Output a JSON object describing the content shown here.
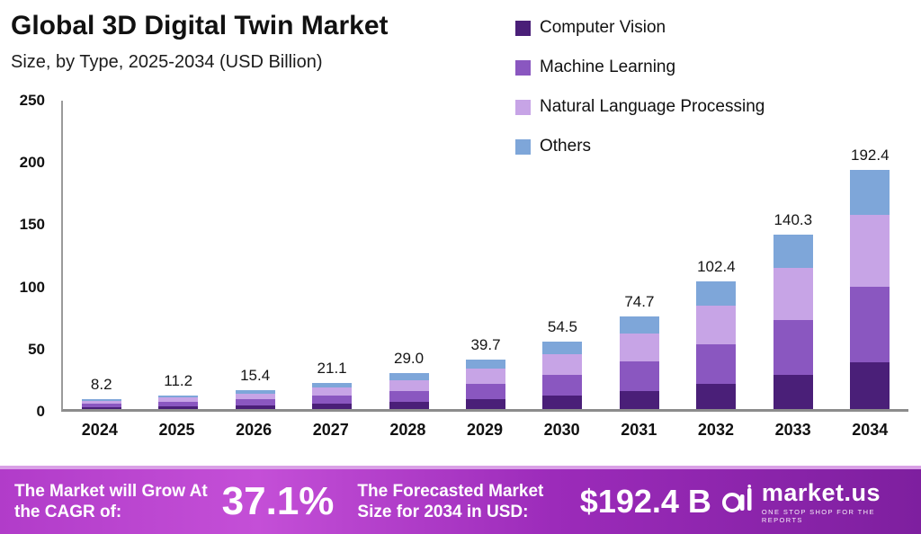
{
  "header": {
    "title": "Global 3D Digital Twin Market",
    "subtitle": "Size, by Type, 2025-2034 (USD Billion)"
  },
  "legend": [
    {
      "label": "Computer Vision",
      "color": "#4a1f78"
    },
    {
      "label": "Machine Learning",
      "color": "#8a57c0"
    },
    {
      "label": "Natural Language Processing",
      "color": "#c7a4e6"
    },
    {
      "label": "Others",
      "color": "#7ea6d9"
    }
  ],
  "chart_data": {
    "type": "bar",
    "stacked": true,
    "title": "Global 3D Digital Twin Market Size, by Type, 2025-2034 (USD Billion)",
    "categories": [
      "2024",
      "2025",
      "2026",
      "2027",
      "2028",
      "2029",
      "2030",
      "2031",
      "2032",
      "2033",
      "2034"
    ],
    "series": [
      {
        "name": "Computer Vision",
        "color": "#4a1f78",
        "values": [
          1.6,
          2.2,
          3.0,
          4.1,
          5.7,
          7.8,
          10.6,
          14.6,
          20.0,
          27.4,
          37.5
        ]
      },
      {
        "name": "Machine Learning",
        "color": "#8a57c0",
        "values": [
          2.6,
          3.5,
          4.9,
          6.6,
          9.1,
          12.5,
          17.2,
          23.5,
          32.3,
          44.2,
          60.6
        ]
      },
      {
        "name": "Natural Language Processing",
        "color": "#c7a4e6",
        "values": [
          2.5,
          3.4,
          4.6,
          6.4,
          8.7,
          11.9,
          16.4,
          22.4,
          30.7,
          42.1,
          57.7
        ]
      },
      {
        "name": "Others",
        "color": "#7ea6d9",
        "values": [
          1.5,
          2.1,
          2.9,
          4.0,
          5.5,
          7.5,
          10.3,
          14.2,
          19.4,
          26.6,
          36.6
        ]
      }
    ],
    "totals": [
      "8.2",
      "11.2",
      "15.4",
      "21.1",
      "29.0",
      "39.7",
      "54.5",
      "74.7",
      "102.4",
      "140.3",
      "192.4"
    ],
    "xlabel": "",
    "ylabel": "USD Billion",
    "ylim": [
      0,
      250
    ],
    "yticks": [
      0,
      50,
      100,
      150,
      200,
      250
    ],
    "grid": false,
    "legend_position": "top-right"
  },
  "banner": {
    "cagr_label": "The Market will Grow At the CAGR of:",
    "cagr_value": "37.1%",
    "forecast_label": "The Forecasted Market Size for 2034 in USD:",
    "forecast_value": "$192.4 B",
    "brand_name": "market.us",
    "brand_tagline": "ONE STOP SHOP FOR THE REPORTS"
  }
}
